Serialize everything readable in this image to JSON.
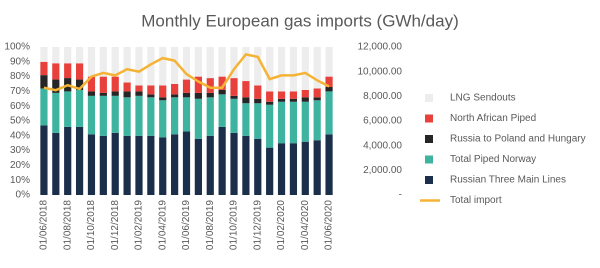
{
  "chart_data": {
    "type": "bar",
    "stacked": true,
    "title": "Monthly European gas imports (GWh/day)",
    "categories": [
      "01/06/2018",
      null,
      "01/08/2018",
      null,
      "01/10/2018",
      null,
      "01/12/2018",
      null,
      "01/02/2019",
      null,
      "01/04/2019",
      null,
      "01/06/2019",
      null,
      "01/08/2019",
      null,
      "01/10/2019",
      null,
      "01/12/2019",
      null,
      "01/02/2020",
      null,
      "01/04/2020",
      null,
      "01/06/2020"
    ],
    "ylim": [
      0,
      100
    ],
    "yticks": [
      {
        "value": 0,
        "label": "0%"
      },
      {
        "value": 10,
        "label": "10%"
      },
      {
        "value": 20,
        "label": "20%"
      },
      {
        "value": 30,
        "label": "30%"
      },
      {
        "value": 40,
        "label": "40%"
      },
      {
        "value": 50,
        "label": "50%"
      },
      {
        "value": 60,
        "label": "60%"
      },
      {
        "value": 70,
        "label": "70%"
      },
      {
        "value": 80,
        "label": "80%"
      },
      {
        "value": 90,
        "label": "90%"
      },
      {
        "value": 100,
        "label": "100%"
      }
    ],
    "y2lim": [
      0,
      12000
    ],
    "y2ticks": [
      {
        "value": 0,
        "label": "-"
      },
      {
        "value": 2000,
        "label": "2,000.00"
      },
      {
        "value": 4000,
        "label": "4,000.00"
      },
      {
        "value": 6000,
        "label": "6,000.00"
      },
      {
        "value": 8000,
        "label": "8,000.00"
      },
      {
        "value": 10000,
        "label": "10,000.00"
      },
      {
        "value": 12000,
        "label": "12,000.00"
      }
    ],
    "series": [
      {
        "name": "Russian Three Main Lines",
        "color": "#1b2f4a",
        "values": [
          47,
          42,
          46,
          46,
          41,
          40,
          42,
          40,
          40,
          40,
          39,
          41,
          43,
          38,
          40,
          46,
          42,
          40,
          38,
          32,
          35,
          35,
          36,
          37,
          41
        ]
      },
      {
        "name": "Total Piped Norway",
        "color": "#3db3a0",
        "values": [
          25,
          27,
          24,
          25,
          26,
          27,
          25,
          26,
          27,
          26,
          25,
          25,
          23,
          27,
          26,
          22,
          23,
          22,
          24,
          29,
          28,
          28,
          27,
          27,
          29
        ]
      },
      {
        "name": "Russia to Poland and Hungary",
        "color": "#262626",
        "values": [
          9,
          9,
          9,
          7,
          3,
          2,
          3,
          4,
          3,
          2,
          2,
          2,
          3,
          4,
          3,
          3,
          2,
          4,
          3,
          2,
          2,
          2,
          3,
          2,
          3
        ]
      },
      {
        "name": "North African Piped",
        "color": "#e8413c",
        "values": [
          9,
          11,
          10,
          11,
          10,
          11,
          10,
          6,
          4,
          6,
          8,
          7,
          9,
          11,
          10,
          9,
          12,
          11,
          9,
          7,
          5,
          5,
          5,
          6,
          7
        ]
      },
      {
        "name": "LNG Sendouts",
        "color": "#ededed",
        "values": [
          10,
          11,
          11,
          11,
          20,
          20,
          20,
          24,
          26,
          26,
          26,
          25,
          22,
          20,
          21,
          20,
          21,
          23,
          26,
          30,
          30,
          30,
          29,
          28,
          20
        ]
      },
      {
        "name": "Total import",
        "color": "#f5b335",
        "type": "line",
        "axis": "y2",
        "values": [
          8700,
          8500,
          8900,
          8600,
          9600,
          9900,
          9700,
          10200,
          10000,
          10600,
          11100,
          10900,
          9800,
          9200,
          8700,
          8700,
          10200,
          11400,
          11200,
          9400,
          9700,
          9700,
          9900,
          9300,
          8800
        ]
      }
    ]
  }
}
